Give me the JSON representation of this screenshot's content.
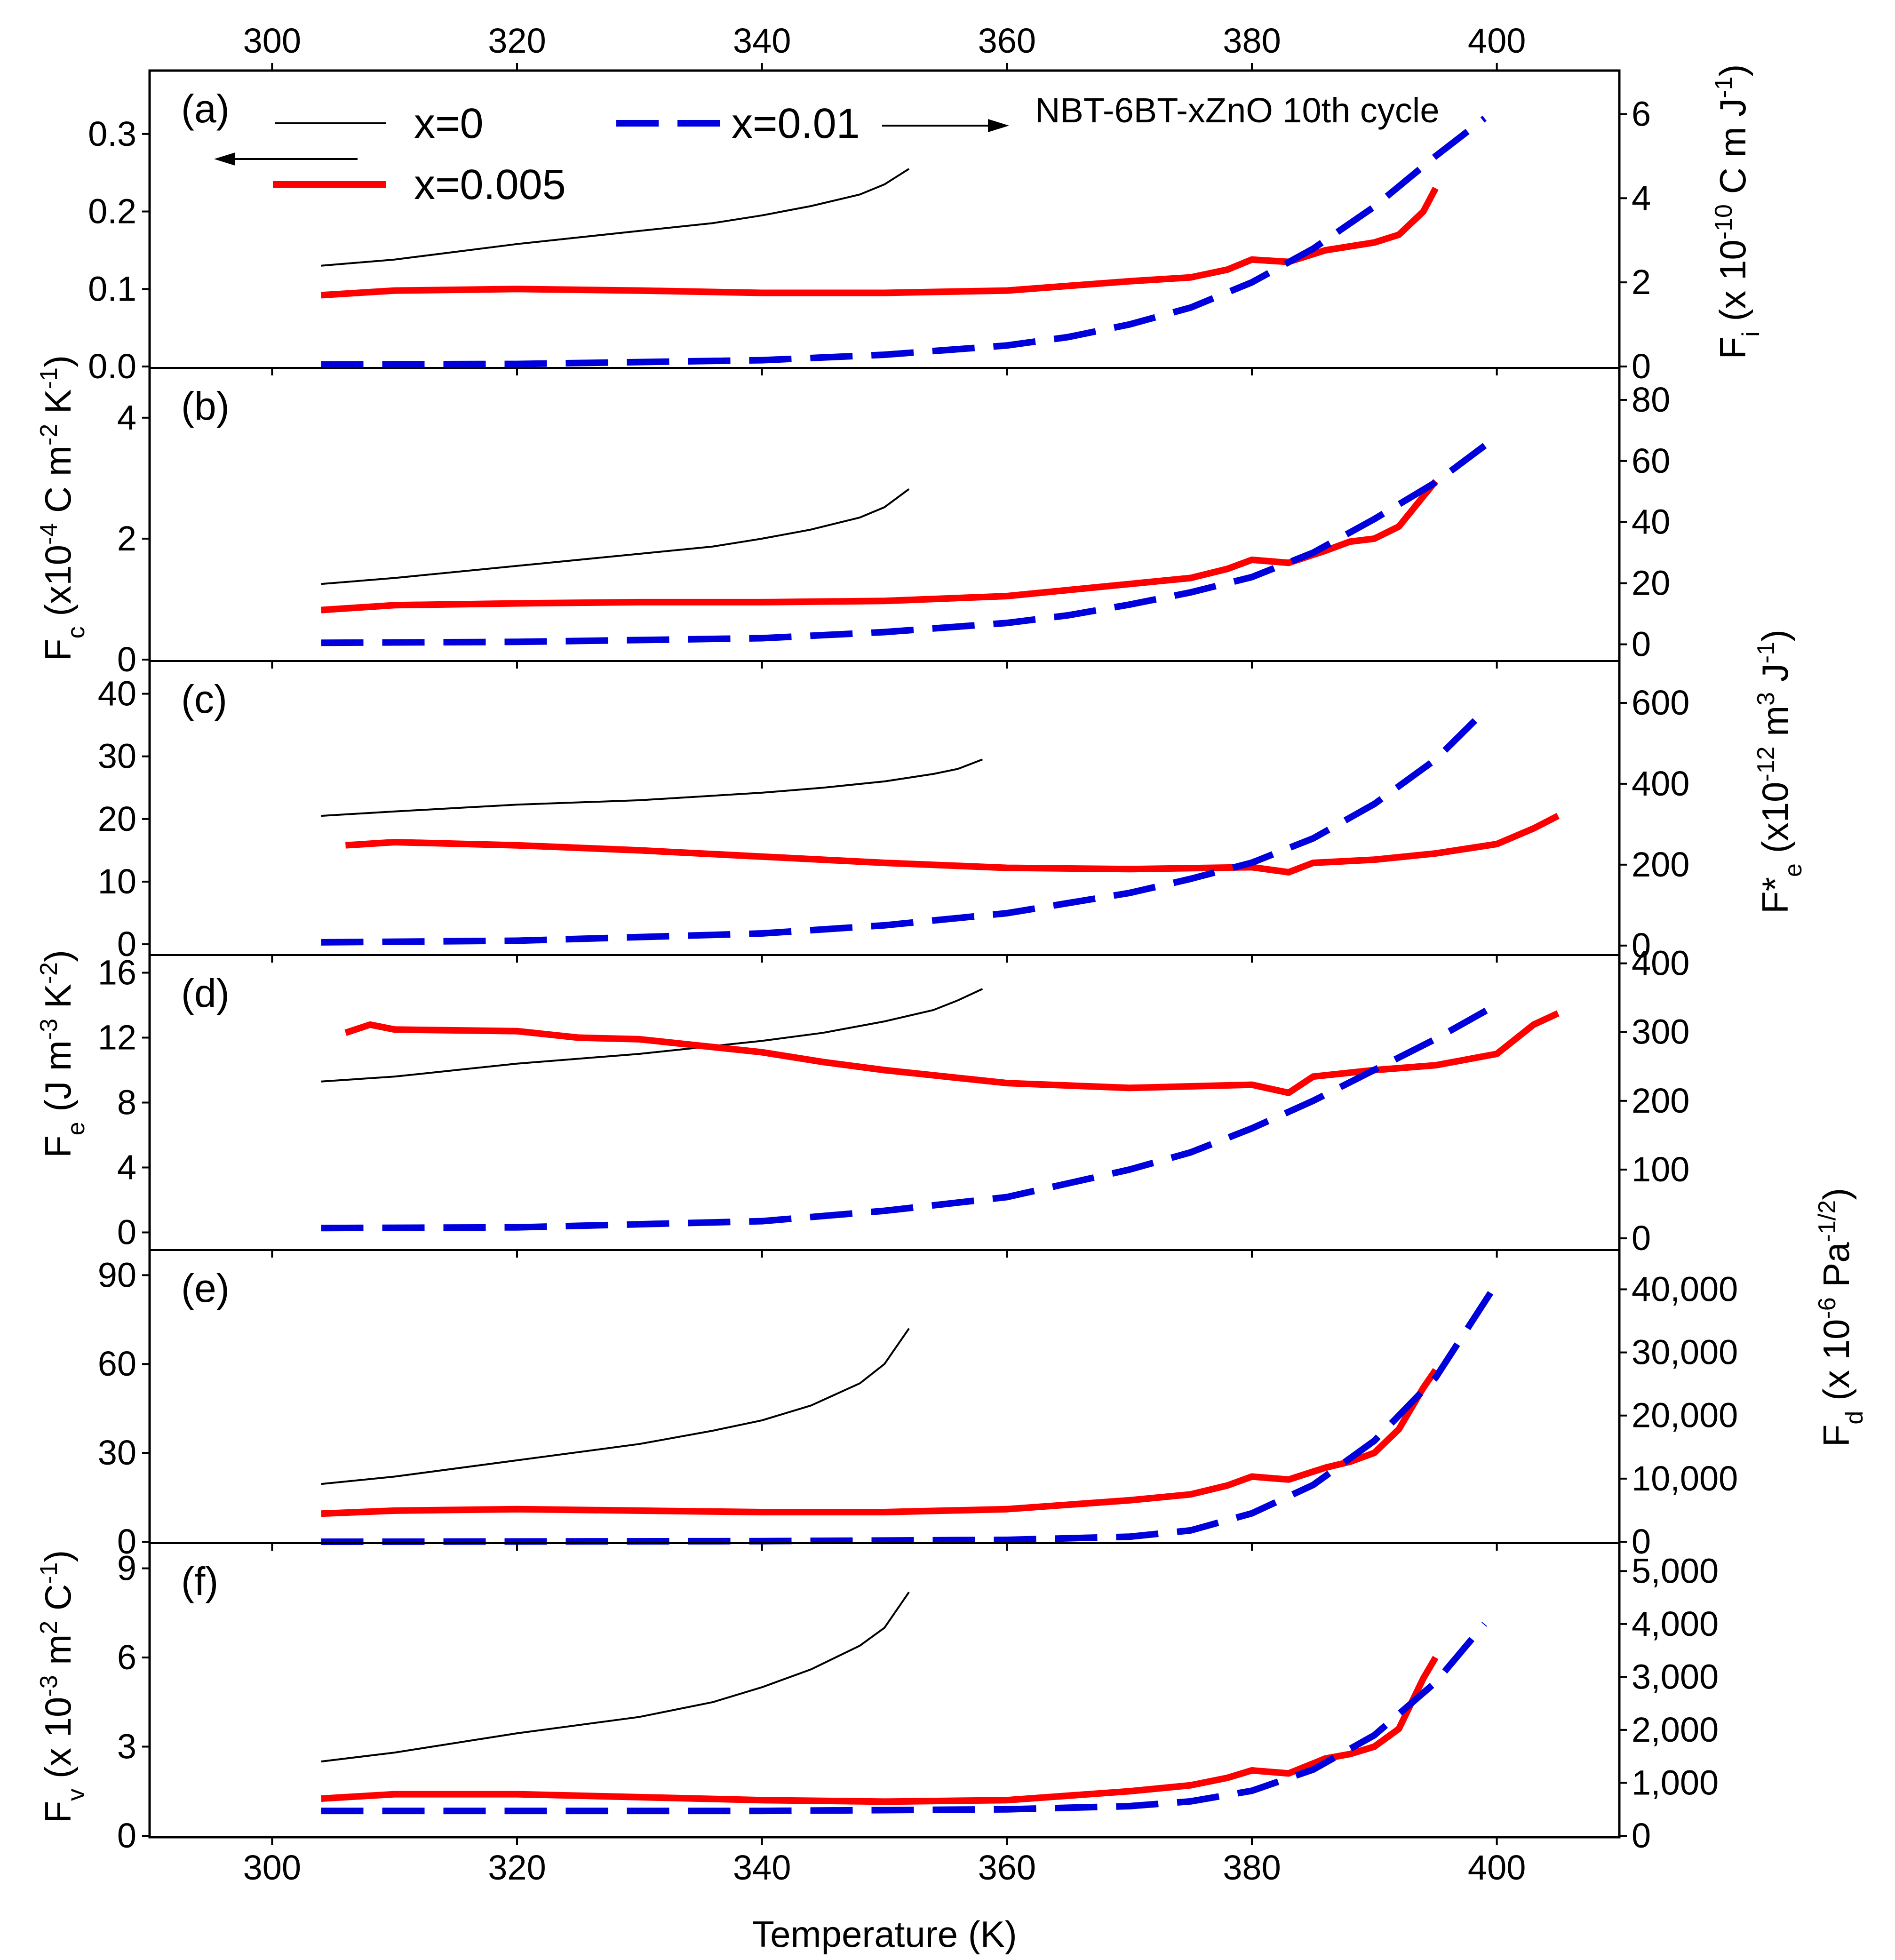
{
  "chart_data": {
    "type": "line",
    "title": "NBT-6BT-xZnO 10th cycle",
    "xlabel": "Temperature (K)",
    "xlim": [
      290,
      410
    ],
    "x_ticks": [
      300,
      320,
      340,
      360,
      380,
      400
    ],
    "legend": {
      "placement": "top-left",
      "entries": [
        {
          "key": "x0",
          "label": "x=0",
          "axis": "left",
          "color": "#000000",
          "style": "thin solid"
        },
        {
          "key": "x005",
          "label": "x=0.005",
          "axis": "left",
          "color": "#ff0000",
          "style": "thick solid"
        },
        {
          "key": "x01",
          "label": "x=0.01",
          "axis": "right",
          "color": "#0000dd",
          "style": "dashed"
        }
      ]
    },
    "colors": {
      "x0": "#000000",
      "x005": "#ff0000",
      "x01": "#0000dd"
    },
    "panels": [
      {
        "id": "a",
        "label": "(a)",
        "left": {
          "label": "",
          "lim": [
            0,
            0.38
          ],
          "ticks": [
            0.0,
            0.1,
            0.2,
            0.3
          ],
          "tick_labels": [
            "0.0",
            "0.1",
            "0.2",
            "0.3"
          ]
        },
        "right": {
          "label": "F_i (x 10^-10 C m J^-1)",
          "lim": [
            0,
            7.0
          ],
          "ticks": [
            0,
            2,
            4,
            6
          ],
          "tick_labels": [
            "0",
            "2",
            "4",
            "6"
          ]
        },
        "series": [
          {
            "name": "x=0",
            "key": "x0",
            "axis": "left",
            "x": [
              304,
              310,
              320,
              330,
              336,
              340,
              344,
              348,
              350,
              352
            ],
            "y": [
              0.13,
              0.138,
              0.158,
              0.175,
              0.185,
              0.195,
              0.207,
              0.222,
              0.235,
              0.255
            ]
          },
          {
            "name": "x=0.005",
            "key": "x005",
            "axis": "left",
            "x": [
              304,
              310,
              320,
              330,
              340,
              350,
              360,
              370,
              375,
              378,
              380,
              383,
              386,
              388,
              390,
              392,
              394,
              395
            ],
            "y": [
              0.092,
              0.098,
              0.1,
              0.098,
              0.095,
              0.095,
              0.098,
              0.11,
              0.115,
              0.125,
              0.138,
              0.135,
              0.15,
              0.155,
              0.16,
              0.17,
              0.2,
              0.23
            ]
          },
          {
            "name": "x=0.01",
            "key": "x01",
            "axis": "right",
            "x": [
              304,
              320,
              340,
              350,
              360,
              365,
              370,
              375,
              380,
              385,
              390,
              395,
              399
            ],
            "y": [
              0.05,
              0.06,
              0.15,
              0.28,
              0.5,
              0.7,
              1.0,
              1.4,
              2.0,
              2.8,
              3.8,
              5.0,
              5.9
            ]
          }
        ]
      },
      {
        "id": "b",
        "label": "(b)",
        "left": {
          "label": "F_c (x10^-4 C m^-2 K^-1)",
          "lim": [
            0,
            4.8
          ],
          "ticks": [
            0,
            2,
            4
          ],
          "tick_labels": [
            "0",
            "2",
            "4"
          ]
        },
        "right": {
          "label": "",
          "lim": [
            -5,
            90
          ],
          "ticks": [
            0,
            20,
            40,
            60,
            80
          ],
          "tick_labels": [
            "0",
            "20",
            "40",
            "60",
            "80"
          ]
        },
        "series": [
          {
            "name": "x=0",
            "key": "x0",
            "axis": "left",
            "x": [
              304,
              310,
              320,
              330,
              336,
              340,
              344,
              348,
              350,
              352
            ],
            "y": [
              1.25,
              1.35,
              1.55,
              1.75,
              1.87,
              2.0,
              2.15,
              2.35,
              2.52,
              2.82
            ]
          },
          {
            "name": "x=0.005",
            "key": "x005",
            "axis": "left",
            "x": [
              304,
              310,
              320,
              330,
              340,
              350,
              360,
              370,
              375,
              378,
              380,
              383,
              386,
              388,
              390,
              392,
              394,
              395
            ],
            "y": [
              0.82,
              0.9,
              0.93,
              0.95,
              0.95,
              0.97,
              1.05,
              1.25,
              1.35,
              1.5,
              1.65,
              1.6,
              1.8,
              1.95,
              2.0,
              2.2,
              2.7,
              2.95
            ]
          },
          {
            "name": "x=0.01",
            "key": "x01",
            "axis": "right",
            "x": [
              304,
              320,
              340,
              350,
              360,
              365,
              370,
              375,
              380,
              385,
              390,
              395,
              400
            ],
            "y": [
              0.5,
              0.8,
              2.0,
              4.0,
              7.0,
              9.5,
              13.0,
              17.0,
              22.0,
              30.0,
              41.0,
              53.0,
              68.0
            ]
          }
        ]
      },
      {
        "id": "c",
        "label": "(c)",
        "left": {
          "label": "",
          "lim": [
            -1.5,
            45
          ],
          "ticks": [
            0,
            10,
            20,
            30,
            40
          ],
          "tick_labels": [
            "0",
            "10",
            "20",
            "30",
            "40"
          ]
        },
        "right": {
          "label": "F*_e (x10^-12 m^3 J^-1)",
          "lim": [
            -20,
            700
          ],
          "ticks": [
            0,
            200,
            400,
            600
          ],
          "tick_labels": [
            "0",
            "200",
            "400",
            "600"
          ]
        },
        "series": [
          {
            "name": "x=0",
            "key": "x0",
            "axis": "left",
            "x": [
              304,
              310,
              320,
              330,
              340,
              345,
              350,
              354,
              356,
              358
            ],
            "y": [
              20.5,
              21.2,
              22.3,
              23.0,
              24.2,
              25.0,
              26.0,
              27.2,
              28.0,
              29.5
            ]
          },
          {
            "name": "x=0.005",
            "key": "x005",
            "axis": "left",
            "x": [
              306,
              310,
              320,
              330,
              340,
              350,
              360,
              370,
              380,
              383,
              385,
              390,
              395,
              400,
              403,
              405
            ],
            "y": [
              15.8,
              16.3,
              15.8,
              15.0,
              14.0,
              13.0,
              12.2,
              12.0,
              12.3,
              11.5,
              13.0,
              13.5,
              14.5,
              16.0,
              18.5,
              20.5
            ]
          },
          {
            "name": "x=0.01",
            "key": "x01",
            "axis": "right",
            "x": [
              304,
              320,
              340,
              350,
              360,
              370,
              375,
              380,
              385,
              390,
              395,
              399
            ],
            "y": [
              8,
              12,
              30,
              50,
              80,
              130,
              165,
              205,
              265,
              350,
              460,
              580
            ]
          }
        ]
      },
      {
        "id": "d",
        "label": "(d)",
        "left": {
          "label": "F_e (J m^-3 K^-2)",
          "lim": [
            -1,
            17
          ],
          "ticks": [
            0,
            4,
            8,
            12,
            16
          ],
          "tick_labels": [
            "0",
            "4",
            "8",
            "12",
            "16"
          ]
        },
        "right": {
          "label": "",
          "lim": [
            -15,
            410
          ],
          "ticks": [
            0,
            100,
            200,
            300,
            400
          ],
          "tick_labels": [
            "0",
            "100",
            "200",
            "300",
            "400"
          ]
        },
        "series": [
          {
            "name": "x=0",
            "key": "x0",
            "axis": "left",
            "x": [
              304,
              310,
              320,
              330,
              340,
              345,
              350,
              354,
              356,
              358
            ],
            "y": [
              9.3,
              9.6,
              10.4,
              11.0,
              11.8,
              12.3,
              13.0,
              13.7,
              14.3,
              15.0
            ]
          },
          {
            "name": "x=0.005",
            "key": "x005",
            "axis": "left",
            "x": [
              306,
              308,
              310,
              320,
              325,
              330,
              340,
              345,
              350,
              360,
              370,
              380,
              383,
              385,
              390,
              395,
              400,
              403,
              405
            ],
            "y": [
              12.3,
              12.8,
              12.5,
              12.4,
              12.0,
              11.9,
              11.1,
              10.5,
              10.0,
              9.2,
              8.9,
              9.1,
              8.6,
              9.6,
              10.0,
              10.3,
              11.0,
              12.8,
              13.5
            ]
          },
          {
            "name": "x=0.01",
            "key": "x01",
            "axis": "right",
            "x": [
              304,
              320,
              340,
              350,
              360,
              370,
              375,
              380,
              385,
              390,
              395,
              400
            ],
            "y": [
              15,
              16,
              25,
              40,
              60,
              100,
              125,
              160,
              200,
              245,
              290,
              340
            ]
          }
        ]
      },
      {
        "id": "e",
        "label": "(e)",
        "left": {
          "label": "",
          "lim": [
            0,
            98
          ],
          "ticks": [
            0,
            30,
            60,
            90
          ],
          "tick_labels": [
            "0",
            "30",
            "60",
            "90"
          ]
        },
        "right": {
          "label": "F_d (x 10^-6 Pa^-1/2)",
          "lim": [
            0,
            46000
          ],
          "ticks": [
            0,
            10000,
            20000,
            30000,
            40000
          ],
          "tick_labels": [
            "0",
            "10,000",
            "20,000",
            "30,000",
            "40,000"
          ]
        },
        "series": [
          {
            "name": "x=0",
            "key": "x0",
            "axis": "left",
            "x": [
              304,
              310,
              320,
              330,
              336,
              340,
              344,
              348,
              350,
              352
            ],
            "y": [
              19.5,
              22.0,
              27.5,
              33.0,
              37.5,
              41.0,
              46.0,
              53.5,
              60.0,
              72.0
            ]
          },
          {
            "name": "x=0.005",
            "key": "x005",
            "axis": "left",
            "x": [
              304,
              310,
              320,
              330,
              340,
              350,
              360,
              370,
              375,
              378,
              380,
              383,
              386,
              388,
              390,
              392,
              394,
              395
            ],
            "y": [
              9.5,
              10.5,
              11.0,
              10.5,
              10.0,
              10.0,
              11.0,
              14.0,
              16.0,
              19.0,
              22.0,
              21.0,
              25.0,
              27.0,
              30.0,
              38.0,
              52.0,
              58.0
            ]
          },
          {
            "name": "x=0.01",
            "key": "x01",
            "axis": "right",
            "x": [
              304,
              340,
              360,
              370,
              375,
              380,
              385,
              390,
              395,
              400
            ],
            "y": [
              0,
              100,
              300,
              800,
              1800,
              4500,
              9000,
              16000,
              26000,
              41000
            ]
          }
        ]
      },
      {
        "id": "f",
        "label": "(f)",
        "left": {
          "label": "F_v (x 10^-3 m^2 C^-1)",
          "lim": [
            0,
            9.8
          ],
          "ticks": [
            0,
            3,
            6,
            9
          ],
          "tick_labels": [
            "0",
            "3",
            "6",
            "9"
          ]
        },
        "right": {
          "label": "",
          "lim": [
            0,
            5500
          ],
          "ticks": [
            0,
            1000,
            2000,
            3000,
            4000,
            5000
          ],
          "tick_labels": [
            "0",
            "1,000",
            "2,000",
            "3,000",
            "4,000",
            "5,000"
          ]
        },
        "series": [
          {
            "name": "x=0",
            "key": "x0",
            "axis": "left",
            "x": [
              304,
              310,
              320,
              330,
              336,
              340,
              344,
              348,
              350,
              352
            ],
            "y": [
              2.5,
              2.8,
              3.45,
              4.0,
              4.5,
              5.0,
              5.6,
              6.4,
              7.0,
              8.2
            ]
          },
          {
            "name": "x=0.005",
            "key": "x005",
            "axis": "left",
            "x": [
              304,
              310,
              320,
              330,
              340,
              350,
              360,
              370,
              375,
              378,
              380,
              383,
              386,
              388,
              390,
              392,
              394,
              395
            ],
            "y": [
              1.25,
              1.4,
              1.4,
              1.3,
              1.2,
              1.15,
              1.2,
              1.5,
              1.7,
              1.95,
              2.2,
              2.1,
              2.6,
              2.75,
              3.0,
              3.6,
              5.3,
              6.0
            ]
          },
          {
            "name": "x=0.01",
            "key": "x01",
            "axis": "right",
            "x": [
              304,
              340,
              360,
              370,
              375,
              380,
              385,
              390,
              395,
              399
            ],
            "y": [
              470,
              470,
              500,
              560,
              650,
              850,
              1250,
              1900,
              2900,
              4000
            ]
          }
        ]
      }
    ]
  }
}
